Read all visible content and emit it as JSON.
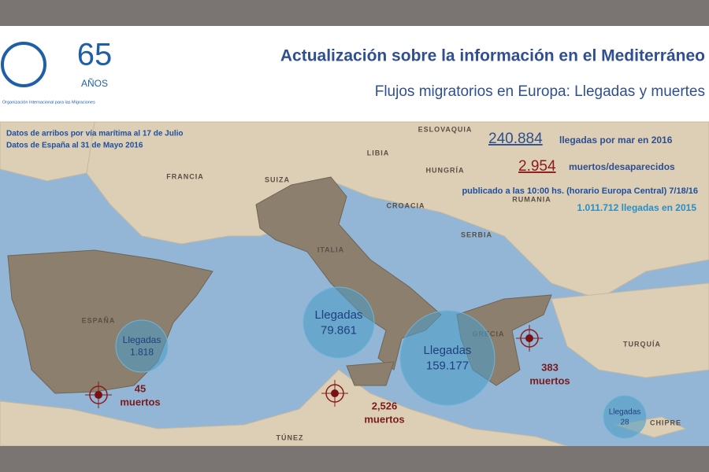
{
  "header": {
    "logo_number": "65",
    "logo_years": "AÑOS",
    "org": "Organización Internacional para las Migraciones",
    "title": "Actualización sobre la información en el Mediterráneo",
    "subtitle": "Flujos migratorios en Europa: Llegadas y muertes"
  },
  "notes": [
    "Datos de arribos por vía marítima al 17 de Julio",
    "Datos de España al 31 de Mayo 2016"
  ],
  "stats": {
    "arrivals_number": "240.884",
    "arrivals_text": "llegadas por mar en 2016",
    "deaths_number": "2.954",
    "deaths_text": "muertos/desaparecidos",
    "published": "publicado a las 10:00 hs. (horario Europa Central) 7/18/16",
    "arrivals_2015": "1.011.712 llegadas en 2015"
  },
  "countries": [
    "ESLOVAQUIA",
    "LIBIA",
    "FRANCIA",
    "SUIZA",
    "HUNGRÍA",
    "CROACIA",
    "RUMANIA",
    "SERBIA",
    "ITALIA",
    "ESPAÑA",
    "GRECIA",
    "TURQUÍA",
    "TÚNEZ",
    "CHIPRE"
  ],
  "arrivals": [
    {
      "label": "Llegadas",
      "value": "1.818"
    },
    {
      "label": "Llegadas",
      "value": "79.861"
    },
    {
      "label": "Llegadas",
      "value": "159.177"
    },
    {
      "label": "Llegadas",
      "value": "28"
    }
  ],
  "deaths": [
    {
      "value": "45",
      "label": "muertos"
    },
    {
      "value": "2,526",
      "label": "muertos"
    },
    {
      "value": "383",
      "label": "muertos"
    }
  ]
}
